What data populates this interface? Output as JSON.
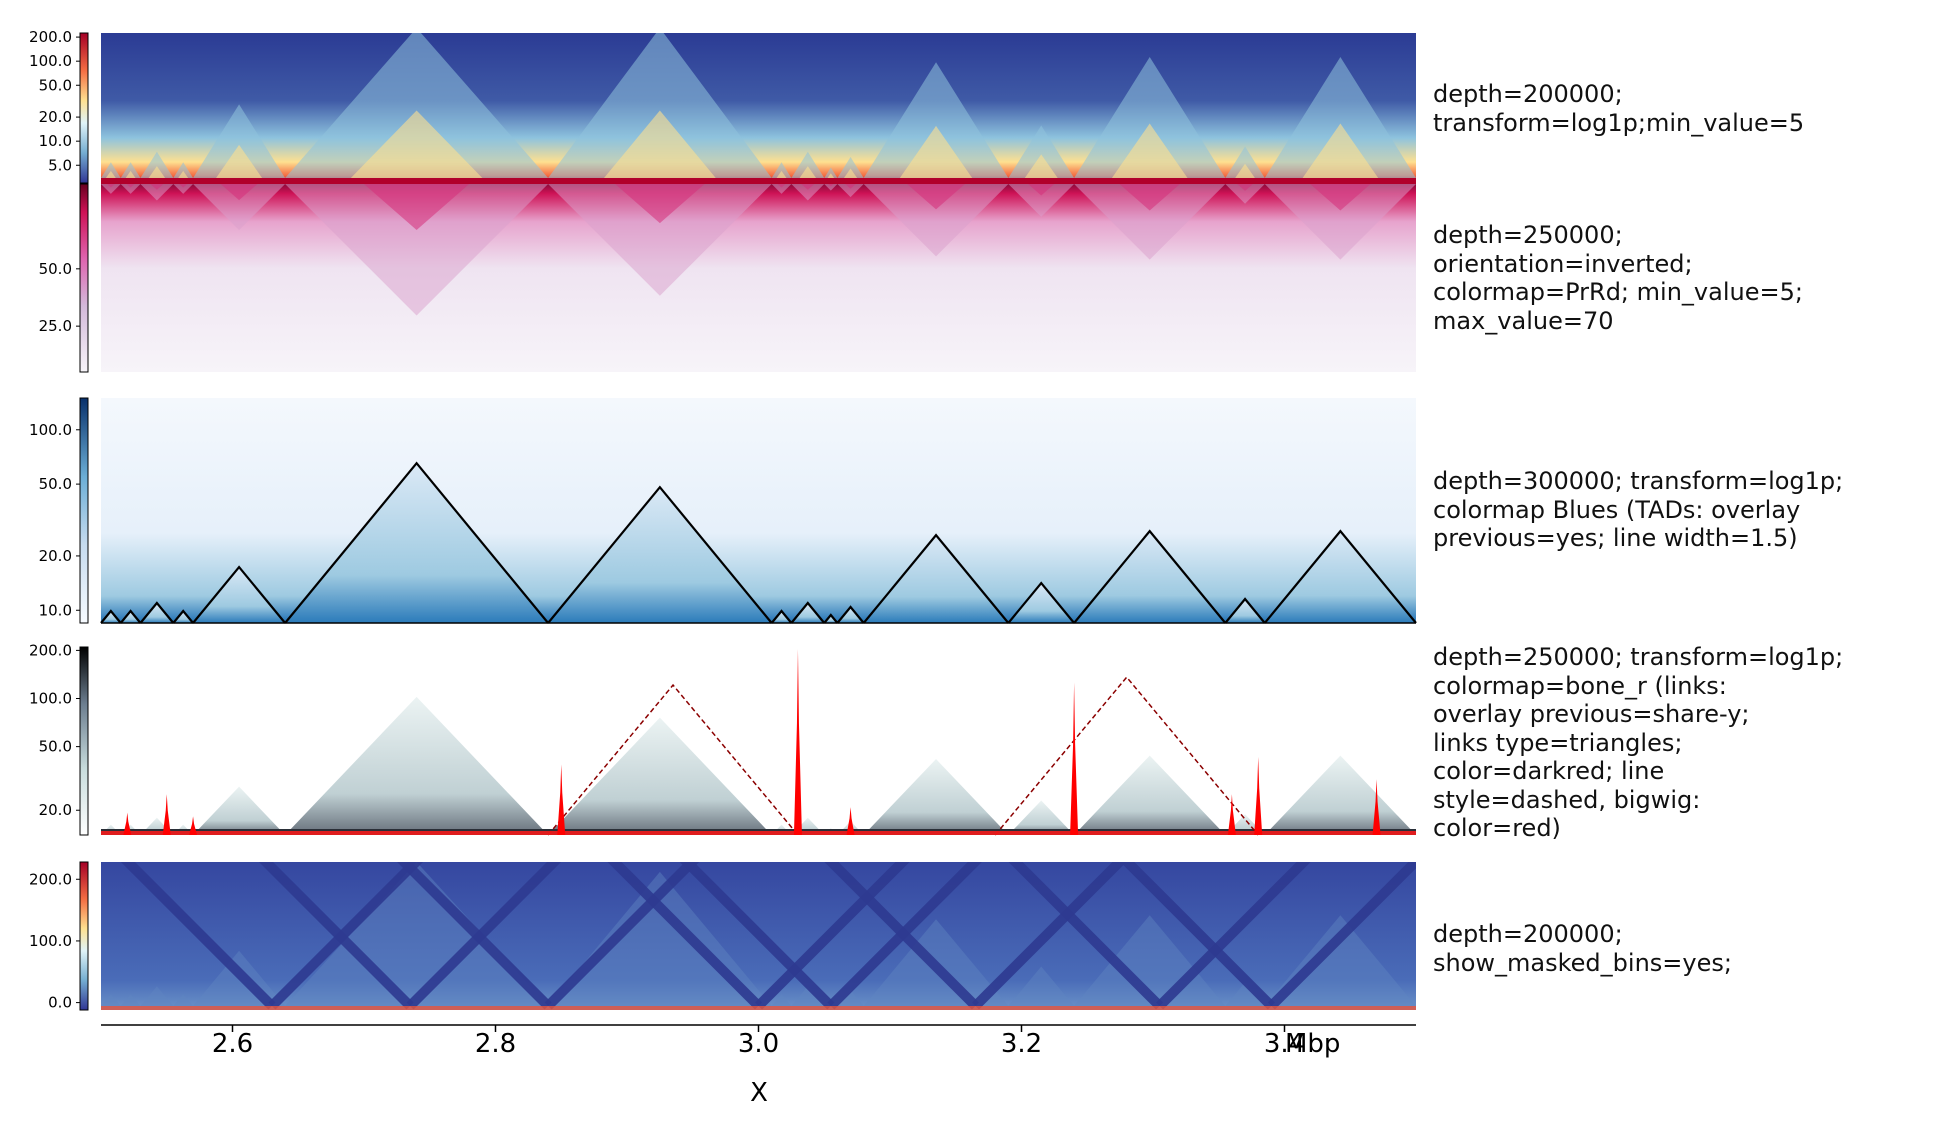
{
  "chart_data": {
    "type": "heatmap",
    "xlabel": "X",
    "x_unit": "Mbp",
    "x_ticks": [
      "2.6",
      "2.8",
      "3.0",
      "3.2",
      "3.4"
    ],
    "x_tick_values": [
      2.6,
      2.8,
      3.0,
      3.2,
      3.4
    ],
    "xlim": [
      2.5,
      3.5
    ],
    "tracks": [
      {
        "name": "hic-log1p-rdylbu",
        "description": "depth=200000;\ntransform=log1p;min_value=5",
        "colormap": "RdYlBu_r",
        "colorbar_ticks": [
          "200.0",
          "100.0",
          "50.0",
          "20.0",
          "10.0",
          "5.0"
        ],
        "colorbar_values": [
          200,
          100,
          50,
          20,
          10,
          5
        ]
      },
      {
        "name": "hic-inverted-prrd",
        "description": "depth=250000;\norientation=inverted;\ncolormap=PrRd; min_value=5;\nmax_value=70",
        "colormap": "PuRd",
        "colorbar_ticks": [
          "50.0",
          "25.0"
        ],
        "colorbar_values": [
          50,
          25
        ],
        "range": [
          5,
          70
        ]
      },
      {
        "name": "hic-blues-tads",
        "description": "depth=300000; transform=log1p;\ncolormap Blues (TADs: overlay\nprevious=yes; line width=1.5)",
        "colormap": "Blues",
        "colorbar_ticks": [
          "100.0",
          "50.0",
          "20.0",
          "10.0"
        ],
        "colorbar_values": [
          100,
          50,
          20,
          10
        ],
        "tads_mbp": [
          [
            2.5,
            2.515
          ],
          [
            2.515,
            2.53
          ],
          [
            2.53,
            2.555
          ],
          [
            2.555,
            2.57
          ],
          [
            2.57,
            2.64
          ],
          [
            2.64,
            2.84
          ],
          [
            2.84,
            3.01
          ],
          [
            3.01,
            3.025
          ],
          [
            3.025,
            3.05
          ],
          [
            3.05,
            3.06
          ],
          [
            3.06,
            3.08
          ],
          [
            3.08,
            3.19
          ],
          [
            3.19,
            3.24
          ],
          [
            3.24,
            3.355
          ],
          [
            3.355,
            3.385
          ],
          [
            3.385,
            3.5
          ]
        ]
      },
      {
        "name": "hic-bone-links-bigwig",
        "description": "depth=250000; transform=log1p;\ncolormap=bone_r (links:\noverlay previous=share-y;\nlinks type=triangles;\ncolor=darkred; line\nstyle=dashed, bigwig:\ncolor=red)",
        "colormap": "bone_r",
        "colorbar_ticks": [
          "200.0",
          "100.0",
          "50.0",
          "20.0"
        ],
        "colorbar_values": [
          200,
          100,
          50,
          20
        ],
        "links_mbp": [
          [
            2.84,
            3.03
          ],
          [
            3.18,
            3.38
          ]
        ],
        "bigwig_peaks": [
          [
            2.52,
            0.12
          ],
          [
            2.55,
            0.22
          ],
          [
            2.57,
            0.1
          ],
          [
            2.85,
            0.38
          ],
          [
            3.03,
            1.0
          ],
          [
            3.07,
            0.15
          ],
          [
            3.24,
            0.82
          ],
          [
            3.36,
            0.22
          ],
          [
            3.38,
            0.42
          ],
          [
            3.47,
            0.3
          ]
        ]
      },
      {
        "name": "hic-masked-bins",
        "description": "depth=200000;\nshow_masked_bins=yes;",
        "colormap": "RdYlBu_r",
        "colorbar_ticks": [
          "200.0",
          "100.0",
          "0.0"
        ],
        "colorbar_values": [
          200,
          100,
          0
        ]
      }
    ]
  }
}
